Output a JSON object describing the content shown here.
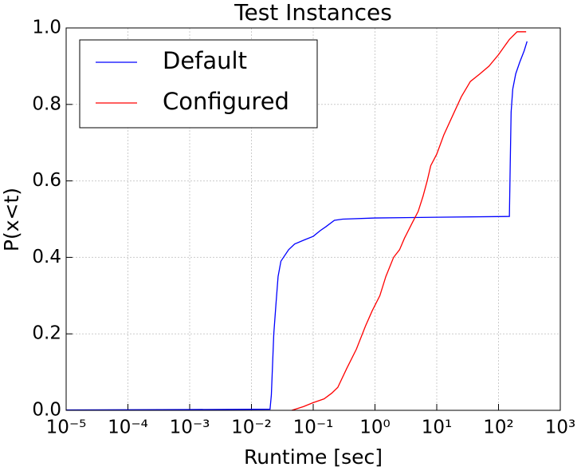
{
  "chart_data": {
    "type": "line",
    "title": "Test Instances",
    "x_label": "Runtime [sec]",
    "y_label": "P(x<t)",
    "xscale": "log",
    "grid": true,
    "legend": "upper left",
    "xlim": [
      1e-05,
      1000
    ],
    "ylim": [
      0,
      1
    ],
    "xticks": [
      {
        "value": 1e-05,
        "label": "10⁻⁵"
      },
      {
        "value": 0.0001,
        "label": "10⁻⁴"
      },
      {
        "value": 0.001,
        "label": "10⁻³"
      },
      {
        "value": 0.01,
        "label": "10⁻²"
      },
      {
        "value": 0.1,
        "label": "10⁻¹"
      },
      {
        "value": 1,
        "label": "10⁰"
      },
      {
        "value": 10,
        "label": "10¹"
      },
      {
        "value": 100,
        "label": "10²"
      },
      {
        "value": 1000,
        "label": "10³"
      }
    ],
    "yticks": [
      {
        "value": 0,
        "label": "0.0"
      },
      0.2,
      0.4,
      0.6,
      0.8,
      {
        "value": 1,
        "label": "1.0"
      }
    ],
    "series": [
      {
        "name": "Default",
        "color": "#0000ff",
        "x": [
          1e-05,
          0.001,
          0.02,
          0.021,
          0.023,
          0.025,
          0.027,
          0.03,
          0.04,
          0.05,
          0.07,
          0.1,
          0.13,
          0.16,
          0.22,
          0.3,
          1,
          10,
          150,
          155,
          160,
          170,
          190,
          220,
          260,
          290
        ],
        "values": [
          0.001,
          0.002,
          0.003,
          0.04,
          0.2,
          0.28,
          0.35,
          0.39,
          0.42,
          0.435,
          0.445,
          0.455,
          0.47,
          0.48,
          0.497,
          0.5,
          0.503,
          0.505,
          0.507,
          0.65,
          0.78,
          0.84,
          0.88,
          0.91,
          0.94,
          0.965
        ]
      },
      {
        "name": "Configured",
        "color": "#ff0000",
        "x": [
          0.045,
          0.07,
          0.1,
          0.15,
          0.2,
          0.25,
          0.35,
          0.5,
          0.7,
          0.9,
          1.2,
          1.5,
          2,
          2.5,
          3,
          4,
          5,
          6,
          7,
          8,
          10,
          13,
          18,
          25,
          35,
          50,
          70,
          100,
          150,
          200,
          280
        ],
        "values": [
          0,
          0.01,
          0.02,
          0.03,
          0.045,
          0.06,
          0.11,
          0.16,
          0.22,
          0.26,
          0.3,
          0.35,
          0.4,
          0.42,
          0.45,
          0.49,
          0.52,
          0.56,
          0.6,
          0.64,
          0.67,
          0.72,
          0.77,
          0.82,
          0.86,
          0.88,
          0.9,
          0.93,
          0.97,
          0.99,
          0.99
        ]
      }
    ]
  }
}
